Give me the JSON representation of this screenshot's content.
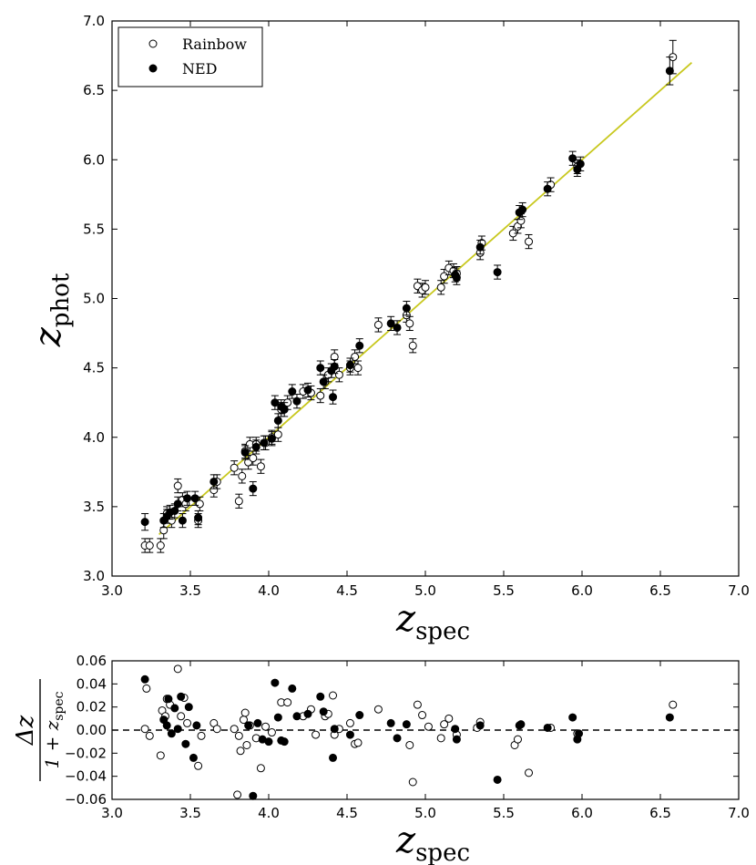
{
  "chart_data": [
    {
      "type": "scatter",
      "xlabel": "z",
      "xlabel_sub": "spec",
      "ylabel": "z",
      "ylabel_sub": "phot",
      "xlim": [
        3.0,
        7.0
      ],
      "ylim": [
        3.0,
        7.0
      ],
      "xticks": [
        "3.0",
        "3.5",
        "4.0",
        "4.5",
        "5.0",
        "5.5",
        "6.0",
        "6.5",
        "7.0"
      ],
      "yticks": [
        "3.0",
        "3.5",
        "4.0",
        "4.5",
        "5.0",
        "5.5",
        "6.0",
        "6.5",
        "7.0"
      ],
      "legend": {
        "placement": "top-left",
        "entries": [
          "Rainbow",
          "NED"
        ]
      },
      "fit_line": {
        "color": "#c8c81e",
        "x": [
          3.3,
          6.7
        ],
        "y": [
          3.3,
          6.7
        ]
      },
      "series": [
        {
          "name": "Rainbow",
          "marker": "open-circle",
          "points": [
            [
              3.21,
              3.22,
              0.05
            ],
            [
              3.24,
              3.22,
              0.05
            ],
            [
              3.31,
              3.22,
              0.05
            ],
            [
              3.33,
              3.33,
              0.06
            ],
            [
              3.35,
              3.45,
              0.05
            ],
            [
              3.38,
              3.4,
              0.05
            ],
            [
              3.42,
              3.65,
              0.05
            ],
            [
              3.45,
              3.55,
              0.05
            ],
            [
              3.47,
              3.52,
              0.05
            ],
            [
              3.55,
              3.4,
              0.05
            ],
            [
              3.56,
              3.52,
              0.05
            ],
            [
              3.65,
              3.62,
              0.05
            ],
            [
              3.67,
              3.68,
              0.05
            ],
            [
              3.78,
              3.78,
              0.05
            ],
            [
              3.81,
              3.54,
              0.05
            ],
            [
              3.83,
              3.72,
              0.05
            ],
            [
              3.85,
              3.9,
              0.05
            ],
            [
              3.87,
              3.82,
              0.05
            ],
            [
              3.88,
              3.95,
              0.05
            ],
            [
              3.9,
              3.85,
              0.05
            ],
            [
              3.92,
              3.95,
              0.05
            ],
            [
              3.95,
              3.79,
              0.05
            ],
            [
              3.98,
              3.96,
              0.05
            ],
            [
              4.02,
              4.0,
              0.05
            ],
            [
              4.06,
              4.02,
              0.05
            ],
            [
              4.08,
              4.2,
              0.05
            ],
            [
              4.12,
              4.25,
              0.05
            ],
            [
              4.22,
              4.33,
              0.05
            ],
            [
              4.27,
              4.32,
              0.05
            ],
            [
              4.33,
              4.3,
              0.05
            ],
            [
              4.36,
              4.4,
              0.05
            ],
            [
              4.38,
              4.45,
              0.05
            ],
            [
              4.42,
              4.58,
              0.05
            ],
            [
              4.45,
              4.45,
              0.05
            ],
            [
              4.52,
              4.5,
              0.05
            ],
            [
              4.55,
              4.58,
              0.05
            ],
            [
              4.57,
              4.5,
              0.05
            ],
            [
              4.7,
              4.81,
              0.05
            ],
            [
              4.88,
              4.88,
              0.05
            ],
            [
              4.9,
              4.82,
              0.05
            ],
            [
              4.92,
              4.66,
              0.05
            ],
            [
              4.95,
              5.09,
              0.05
            ],
            [
              4.98,
              5.06,
              0.05
            ],
            [
              5.0,
              5.08,
              0.05
            ],
            [
              5.1,
              5.08,
              0.05
            ],
            [
              5.12,
              5.16,
              0.05
            ],
            [
              5.15,
              5.22,
              0.05
            ],
            [
              5.18,
              5.2,
              0.05
            ],
            [
              5.2,
              5.18,
              0.05
            ],
            [
              5.35,
              5.33,
              0.05
            ],
            [
              5.36,
              5.4,
              0.05
            ],
            [
              5.56,
              5.47,
              0.05
            ],
            [
              5.59,
              5.52,
              0.05
            ],
            [
              5.61,
              5.56,
              0.05
            ],
            [
              5.66,
              5.41,
              0.05
            ],
            [
              5.8,
              5.82,
              0.05
            ],
            [
              5.97,
              5.95,
              0.05
            ],
            [
              6.58,
              6.74,
              0.12
            ]
          ]
        },
        {
          "name": "NED",
          "marker": "filled-circle",
          "points": [
            [
              3.21,
              3.39,
              0.06
            ],
            [
              3.33,
              3.4,
              0.05
            ],
            [
              3.35,
              3.43,
              0.05
            ],
            [
              3.37,
              3.46,
              0.05
            ],
            [
              3.4,
              3.47,
              0.05
            ],
            [
              3.42,
              3.52,
              0.05
            ],
            [
              3.45,
              3.4,
              0.05
            ],
            [
              3.48,
              3.56,
              0.05
            ],
            [
              3.53,
              3.56,
              0.05
            ],
            [
              3.55,
              3.42,
              0.05
            ],
            [
              3.65,
              3.68,
              0.05
            ],
            [
              3.85,
              3.89,
              0.05
            ],
            [
              3.9,
              3.63,
              0.05
            ],
            [
              3.92,
              3.93,
              0.05
            ],
            [
              3.97,
              3.96,
              0.05
            ],
            [
              4.02,
              3.99,
              0.05
            ],
            [
              4.04,
              4.25,
              0.05
            ],
            [
              4.06,
              4.12,
              0.05
            ],
            [
              4.08,
              4.22,
              0.05
            ],
            [
              4.1,
              4.2,
              0.05
            ],
            [
              4.15,
              4.33,
              0.05
            ],
            [
              4.18,
              4.26,
              0.05
            ],
            [
              4.25,
              4.34,
              0.05
            ],
            [
              4.33,
              4.5,
              0.05
            ],
            [
              4.35,
              4.4,
              0.05
            ],
            [
              4.4,
              4.48,
              0.05
            ],
            [
              4.41,
              4.29,
              0.05
            ],
            [
              4.42,
              4.51,
              0.05
            ],
            [
              4.52,
              4.52,
              0.05
            ],
            [
              4.58,
              4.66,
              0.05
            ],
            [
              4.78,
              4.82,
              0.05
            ],
            [
              4.82,
              4.79,
              0.05
            ],
            [
              4.88,
              4.93,
              0.05
            ],
            [
              5.19,
              5.17,
              0.05
            ],
            [
              5.2,
              5.15,
              0.05
            ],
            [
              5.35,
              5.37,
              0.05
            ],
            [
              5.46,
              5.19,
              0.05
            ],
            [
              5.6,
              5.62,
              0.05
            ],
            [
              5.62,
              5.64,
              0.05
            ],
            [
              5.78,
              5.79,
              0.05
            ],
            [
              5.94,
              6.01,
              0.05
            ],
            [
              5.97,
              5.93,
              0.05
            ],
            [
              5.99,
              5.97,
              0.05
            ],
            [
              6.56,
              6.64,
              0.1
            ]
          ]
        }
      ]
    },
    {
      "type": "scatter",
      "xlabel": "z",
      "xlabel_sub": "spec",
      "ylabel_num": "Δz",
      "ylabel_den": "1 + z",
      "ylabel_den_sub": "spec",
      "xlim": [
        3.0,
        7.0
      ],
      "ylim": [
        -0.06,
        0.06
      ],
      "xticks": [
        "3.0",
        "3.5",
        "4.0",
        "4.5",
        "5.0",
        "5.5",
        "6.0",
        "6.5",
        "7.0"
      ],
      "yticks": [
        "0.06",
        "0.04",
        "0.02",
        "0.00",
        "−0.02",
        "−0.04",
        "−0.06"
      ],
      "zero_line": "dashed",
      "series": [
        {
          "name": "Rainbow",
          "marker": "open-circle",
          "points": [
            [
              3.21,
              0.001
            ],
            [
              3.22,
              0.036
            ],
            [
              3.24,
              -0.005
            ],
            [
              3.31,
              -0.022
            ],
            [
              3.32,
              0.017
            ],
            [
              3.34,
              0.012
            ],
            [
              3.35,
              0.027
            ],
            [
              3.37,
              0.022
            ],
            [
              3.42,
              0.053
            ],
            [
              3.44,
              0.012
            ],
            [
              3.46,
              0.028
            ],
            [
              3.48,
              0.006
            ],
            [
              3.55,
              -0.031
            ],
            [
              3.57,
              -0.005
            ],
            [
              3.65,
              0.006
            ],
            [
              3.67,
              0.001
            ],
            [
              3.78,
              0.001
            ],
            [
              3.8,
              -0.056
            ],
            [
              3.81,
              -0.005
            ],
            [
              3.82,
              -0.018
            ],
            [
              3.84,
              0.009
            ],
            [
              3.85,
              0.015
            ],
            [
              3.86,
              -0.013
            ],
            [
              3.88,
              0.004
            ],
            [
              3.92,
              -0.007
            ],
            [
              3.95,
              -0.033
            ],
            [
              3.98,
              0.003
            ],
            [
              4.02,
              -0.002
            ],
            [
              4.08,
              0.024
            ],
            [
              4.12,
              0.024
            ],
            [
              4.22,
              0.012
            ],
            [
              4.27,
              0.018
            ],
            [
              4.3,
              -0.004
            ],
            [
              4.36,
              0.012
            ],
            [
              4.38,
              0.014
            ],
            [
              4.41,
              0.03
            ],
            [
              4.42,
              -0.004
            ],
            [
              4.45,
              0.001
            ],
            [
              4.52,
              0.006
            ],
            [
              4.55,
              -0.012
            ],
            [
              4.57,
              -0.011
            ],
            [
              4.7,
              0.018
            ],
            [
              4.9,
              -0.013
            ],
            [
              4.92,
              -0.045
            ],
            [
              4.95,
              0.022
            ],
            [
              4.98,
              0.013
            ],
            [
              5.02,
              0.003
            ],
            [
              5.1,
              -0.007
            ],
            [
              5.12,
              0.005
            ],
            [
              5.15,
              0.01
            ],
            [
              5.2,
              -0.004
            ],
            [
              5.33,
              0.002
            ],
            [
              5.35,
              0.007
            ],
            [
              5.57,
              -0.013
            ],
            [
              5.59,
              -0.008
            ],
            [
              5.66,
              -0.037
            ],
            [
              5.8,
              0.002
            ],
            [
              5.97,
              -0.003
            ],
            [
              6.58,
              0.022
            ]
          ]
        },
        {
          "name": "NED",
          "marker": "filled-circle",
          "points": [
            [
              3.21,
              0.044
            ],
            [
              3.33,
              0.009
            ],
            [
              3.35,
              0.004
            ],
            [
              3.36,
              0.027
            ],
            [
              3.38,
              -0.003
            ],
            [
              3.4,
              0.019
            ],
            [
              3.42,
              0.001
            ],
            [
              3.44,
              0.029
            ],
            [
              3.47,
              -0.012
            ],
            [
              3.49,
              0.02
            ],
            [
              3.52,
              -0.024
            ],
            [
              3.54,
              0.004
            ],
            [
              3.87,
              0.004
            ],
            [
              3.9,
              -0.057
            ],
            [
              3.93,
              0.006
            ],
            [
              3.96,
              -0.008
            ],
            [
              4.0,
              -0.01
            ],
            [
              4.04,
              0.041
            ],
            [
              4.06,
              0.011
            ],
            [
              4.08,
              -0.009
            ],
            [
              4.1,
              -0.01
            ],
            [
              4.15,
              0.036
            ],
            [
              4.18,
              0.012
            ],
            [
              4.25,
              0.014
            ],
            [
              4.33,
              0.029
            ],
            [
              4.35,
              0.016
            ],
            [
              4.41,
              -0.024
            ],
            [
              4.42,
              0.001
            ],
            [
              4.52,
              -0.004
            ],
            [
              4.58,
              0.013
            ],
            [
              4.78,
              0.006
            ],
            [
              4.82,
              -0.007
            ],
            [
              4.88,
              0.005
            ],
            [
              5.19,
              0.001
            ],
            [
              5.2,
              -0.008
            ],
            [
              5.35,
              0.004
            ],
            [
              5.46,
              -0.043
            ],
            [
              5.6,
              0.004
            ],
            [
              5.61,
              0.005
            ],
            [
              5.78,
              0.002
            ],
            [
              5.94,
              0.011
            ],
            [
              5.97,
              -0.008
            ],
            [
              5.98,
              -0.003
            ],
            [
              6.56,
              0.011
            ]
          ]
        }
      ]
    }
  ]
}
